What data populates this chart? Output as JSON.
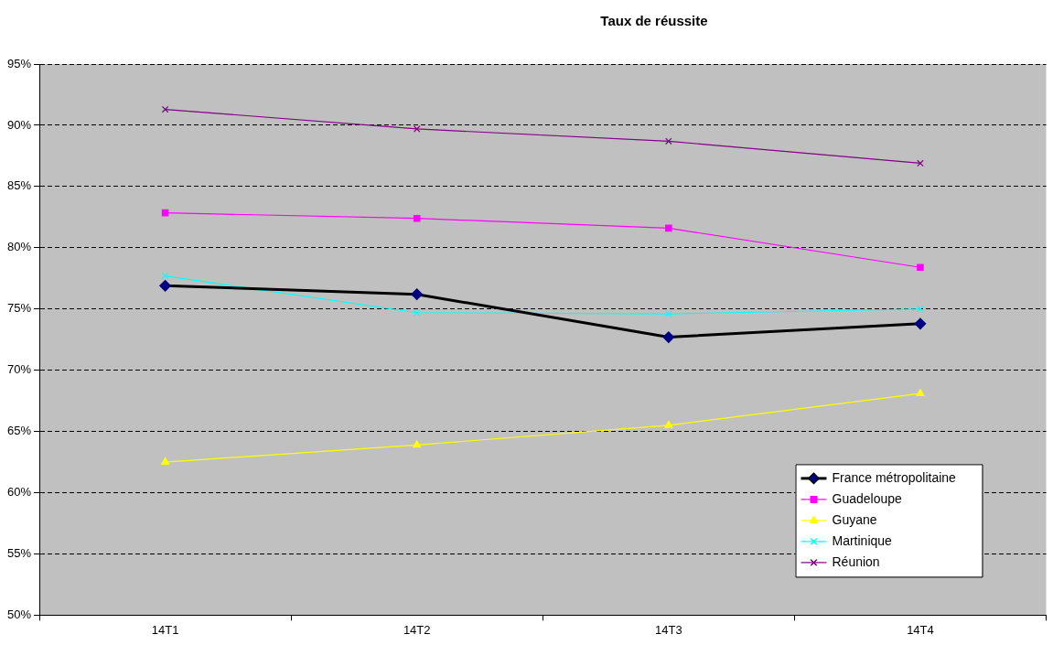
{
  "chart_data": {
    "type": "line",
    "title": "Taux de réussite",
    "categories": [
      "14T1",
      "14T2",
      "14T3",
      "14T4"
    ],
    "series": [
      {
        "name": "France métropolitaine",
        "color": "#000080",
        "marker": "diamond",
        "values": [
          76.9,
          76.2,
          72.7,
          73.8
        ]
      },
      {
        "name": "Guadeloupe",
        "color": "#ff00ff",
        "marker": "square",
        "values": [
          82.85,
          82.4,
          81.6,
          78.4
        ]
      },
      {
        "name": "Guyane",
        "color": "#ffff00",
        "marker": "triangle",
        "values": [
          62.5,
          63.9,
          65.5,
          68.1
        ]
      },
      {
        "name": "Martinique",
        "color": "#00ffff",
        "marker": "cross",
        "values": [
          77.7,
          74.7,
          74.6,
          75.0
        ]
      },
      {
        "name": "Réunion",
        "color": "#800080",
        "marker": "cross",
        "values": [
          91.3,
          89.7,
          88.7,
          86.9
        ]
      }
    ],
    "ylim": [
      50,
      95
    ],
    "yticks": [
      {
        "value": 50,
        "label": "50%"
      },
      {
        "value": 55,
        "label": "55%"
      },
      {
        "value": 60,
        "label": "60%"
      },
      {
        "value": 65,
        "label": "65%"
      },
      {
        "value": 70,
        "label": "70%"
      },
      {
        "value": 75,
        "label": "75%"
      },
      {
        "value": 80,
        "label": "80%"
      },
      {
        "value": 85,
        "label": "85%"
      },
      {
        "value": 90,
        "label": "90%"
      },
      {
        "value": 95,
        "label": "95%"
      }
    ],
    "grid": "y",
    "legend": "bottom right",
    "line_style": "solid"
  }
}
